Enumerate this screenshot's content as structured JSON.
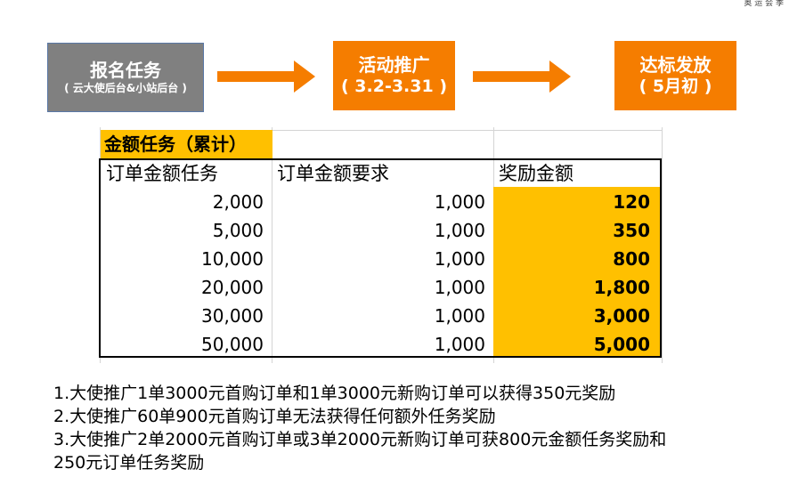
{
  "corner_text": "奥 运 会 季",
  "flow": {
    "step1": {
      "title": "报名任务",
      "subtitle": "( 云大使后台&小站后台 )"
    },
    "step2": {
      "title": "活动推广",
      "subtitle": "( 3.2-3.31 )"
    },
    "step3": {
      "title": "达标发放",
      "subtitle": "( 5月初 )"
    },
    "arrow_color": "#f57d00"
  },
  "table": {
    "title": "金额任务（累计）",
    "headers": [
      "订单金额任务",
      "订单金额要求",
      "奖励金额"
    ],
    "rows": [
      {
        "task": "2,000",
        "requirement": "1,000",
        "reward": "120"
      },
      {
        "task": "5,000",
        "requirement": "1,000",
        "reward": "350"
      },
      {
        "task": "10,000",
        "requirement": "1,000",
        "reward": "800"
      },
      {
        "task": "20,000",
        "requirement": "1,000",
        "reward": "1,800"
      },
      {
        "task": "30,000",
        "requirement": "1,000",
        "reward": "3,000"
      },
      {
        "task": "50,000",
        "requirement": "1,000",
        "reward": "5,000"
      }
    ],
    "highlight_color": "#ffc000"
  },
  "notes": [
    "1.大使推广1单3000元首购订单和1单3000元新购订单可以获得350元奖励",
    "2.大使推广60单900元首购订单无法获得任何额外任务奖励",
    "3.大使推广2单2000元首购订单或3单2000元新购订单可获800元金额任务奖励和",
    "250元订单任务奖励"
  ]
}
